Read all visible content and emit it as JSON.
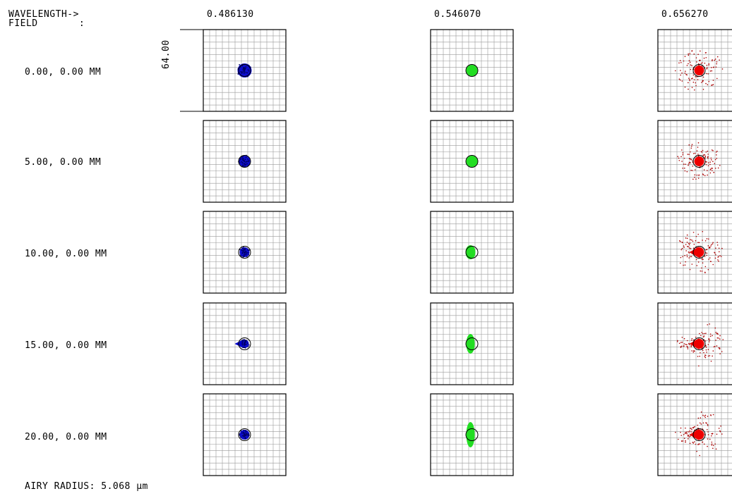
{
  "header": {
    "wavelength_label": "WAVELENGTH->",
    "field_label": "FIELD       :"
  },
  "wavelengths": [
    {
      "value": "0.486130",
      "color": "#0000cc"
    },
    {
      "value": "0.546070",
      "color": "#22dd22"
    },
    {
      "value": "0.656270",
      "color": "#ee0000"
    }
  ],
  "fields": [
    {
      "label": "0.00, 0.00 MM"
    },
    {
      "label": "5.00, 0.00 MM"
    },
    {
      "label": "10.00, 0.00 MM"
    },
    {
      "label": "15.00, 0.00 MM"
    },
    {
      "label": "20.00, 0.00 MM"
    }
  ],
  "scale_label": "64.00",
  "airy_radius_label": "AIRY RADIUS: 5.068 µm"
}
